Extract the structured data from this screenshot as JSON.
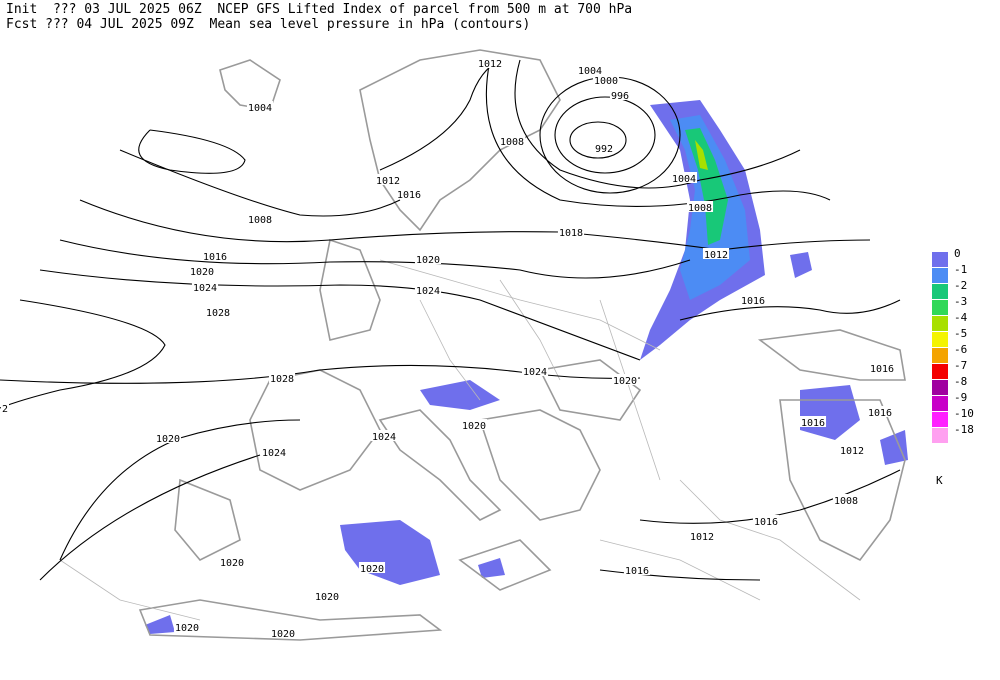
{
  "header": [
    "Init  ??? 03 JUL 2025 06Z  NCEP GFS Lifted Index of parcel from 500 m at 700 hPa",
    "Fcst ??? 04 JUL 2025 09Z  Mean sea level pressure in hPa (contours)"
  ],
  "contour_labels": [
    "1004",
    "1012",
    "1004",
    "1000",
    "996",
    "992",
    "1008",
    "1004",
    "1008",
    "1012",
    "1016",
    "1012",
    "1016",
    "1008",
    "1016",
    "1020",
    "1024",
    "1028",
    "1018",
    "1020",
    "1024",
    "1028",
    "1020",
    "1024",
    "1024",
    "1020",
    "1024",
    "1020",
    "1016",
    "1016",
    "1016",
    "1012",
    "1008",
    "1016",
    "1012",
    "1016",
    "1020",
    "1020",
    "1020",
    "1020",
    "1020",
    "2"
  ],
  "legend": [
    {
      "label": "0",
      "color": "#6f6fec"
    },
    {
      "label": "-1",
      "color": "#4c8cf4"
    },
    {
      "label": "-2",
      "color": "#18c878"
    },
    {
      "label": "-3",
      "color": "#30d858"
    },
    {
      "label": "-4",
      "color": "#a8e000"
    },
    {
      "label": "-5",
      "color": "#f4f400"
    },
    {
      "label": "-6",
      "color": "#f4a400"
    },
    {
      "label": "-7",
      "color": "#f40000"
    },
    {
      "label": "-8",
      "color": "#a000a0"
    },
    {
      "label": "-9",
      "color": "#c800c8"
    },
    {
      "label": "-10",
      "color": "#ff20ff"
    },
    {
      "label": "-18",
      "color": "#ffa0f0"
    }
  ],
  "unit": "K"
}
